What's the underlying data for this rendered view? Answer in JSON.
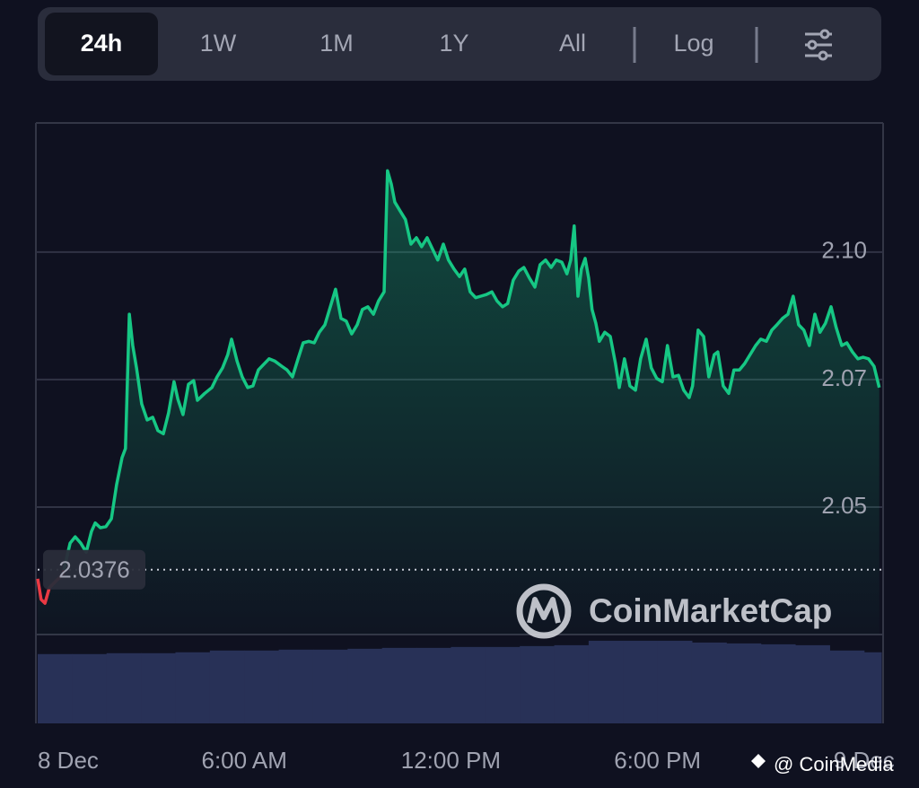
{
  "toolbar": {
    "buttons": [
      "24h",
      "1W",
      "1M",
      "1Y",
      "All"
    ],
    "log": "Log"
  },
  "chart_data": {
    "type": "line",
    "x": [
      0,
      0.1,
      0.21,
      0.34,
      0.52,
      0.73,
      0.94,
      1.09,
      1.25,
      1.41,
      1.56,
      1.67,
      1.82,
      1.98,
      2.14,
      2.29,
      2.45,
      2.55,
      2.66,
      2.76,
      2.87,
      3.02,
      3.18,
      3.34,
      3.49,
      3.65,
      3.8,
      3.96,
      4.07,
      4.22,
      4.38,
      4.53,
      4.64,
      4.85,
      5.06,
      5.21,
      5.37,
      5.52,
      5.63,
      5.79,
      5.94,
      6.1,
      6.25,
      6.41,
      6.57,
      6.72,
      6.88,
      7.09,
      7.24,
      7.4,
      7.56,
      7.71,
      7.87,
      8.03,
      8.18,
      8.34,
      8.5,
      8.65,
      8.81,
      8.96,
      9.12,
      9.28,
      9.43,
      9.59,
      9.75,
      9.9,
      10.06,
      10.16,
      10.27,
      10.37,
      10.53,
      10.68,
      10.84,
      11.0,
      11.15,
      11.31,
      11.47,
      11.62,
      11.78,
      11.93,
      12.09,
      12.25,
      12.4,
      12.56,
      12.72,
      12.87,
      13.03,
      13.19,
      13.34,
      13.5,
      13.65,
      13.81,
      13.97,
      14.12,
      14.28,
      14.44,
      14.59,
      14.75,
      14.91,
      15.06,
      15.22,
      15.37,
      15.48,
      15.58,
      15.69,
      15.79,
      15.9,
      16.0,
      16.1,
      16.21,
      16.31,
      16.47,
      16.63,
      16.78,
      16.89,
      17.04,
      17.2,
      17.36,
      17.51,
      17.67,
      17.82,
      17.98,
      18.14,
      18.29,
      18.45,
      18.61,
      18.76,
      18.92,
      19.02,
      19.18,
      19.34,
      19.49,
      19.65,
      19.75,
      19.91,
      20.07,
      20.22,
      20.38,
      20.53,
      20.69,
      20.85,
      21.0,
      21.16,
      21.32,
      21.47,
      21.63,
      21.79,
      21.94,
      22.1,
      22.25,
      22.41,
      22.57,
      22.72,
      22.88,
      23.04,
      23.19,
      23.35,
      23.5,
      23.66,
      23.82,
      23.97,
      24.13,
      24.29,
      24.44
    ],
    "values": [
      2.0359,
      2.032,
      2.0313,
      2.0342,
      2.0354,
      2.0367,
      2.0426,
      2.0438,
      2.0426,
      2.0409,
      2.0448,
      2.0464,
      2.0455,
      2.0457,
      2.0472,
      2.0536,
      2.0587,
      2.0604,
      2.0857,
      2.0798,
      2.0756,
      2.0688,
      2.0658,
      2.0663,
      2.0638,
      2.0632,
      2.0671,
      2.073,
      2.0697,
      2.0668,
      2.0725,
      2.0732,
      2.0695,
      2.0708,
      2.0719,
      2.0739,
      2.0756,
      2.0781,
      2.081,
      2.0769,
      2.0739,
      2.0719,
      2.0722,
      2.0752,
      2.0763,
      2.0773,
      2.0769,
      2.0759,
      2.0752,
      2.0739,
      2.0773,
      2.0803,
      2.0806,
      2.0803,
      2.0823,
      2.0837,
      2.0871,
      2.0904,
      2.0849,
      2.0844,
      2.082,
      2.0837,
      2.0866,
      2.0871,
      2.0857,
      2.0882,
      2.0899,
      2.1127,
      2.1102,
      2.1068,
      2.1051,
      2.1035,
      2.0989,
      2.1001,
      2.0984,
      2.1001,
      2.0979,
      2.0959,
      2.0989,
      2.0959,
      2.0942,
      2.0928,
      2.0942,
      2.0899,
      2.0888,
      2.0891,
      2.0894,
      2.0899,
      2.0882,
      2.0871,
      2.0877,
      2.0921,
      2.0938,
      2.0945,
      2.0925,
      2.0908,
      2.095,
      2.0959,
      2.0945,
      2.0959,
      2.0955,
      2.0933,
      2.0959,
      2.1023,
      2.0891,
      2.0942,
      2.0962,
      2.0925,
      2.0866,
      2.084,
      2.0806,
      2.0823,
      2.0815,
      2.0764,
      2.0719,
      2.0773,
      2.0722,
      2.0714,
      2.0773,
      2.081,
      2.0756,
      2.0736,
      2.073,
      2.0798,
      2.0739,
      2.0742,
      2.0714,
      2.07,
      2.0722,
      2.0827,
      2.0815,
      2.0739,
      2.0781,
      2.0786,
      2.0722,
      2.0708,
      2.0752,
      2.0752,
      2.0764,
      2.0781,
      2.0798,
      2.081,
      2.0806,
      2.0827,
      2.0837,
      2.0849,
      2.0857,
      2.0891,
      2.0837,
      2.0827,
      2.0798,
      2.0857,
      2.0823,
      2.084,
      2.0871,
      2.0832,
      2.0798,
      2.0803,
      2.0786,
      2.0773,
      2.0776,
      2.0773,
      2.0759,
      2.0719
    ],
    "color": "#16c784",
    "down_color": "#ea3943",
    "baseline": 2.0376,
    "xlim": [
      0,
      24.5
    ],
    "xticks": [
      {
        "value": 0,
        "label": "8 Dec"
      },
      {
        "value": 6,
        "label": "6:00 AM"
      },
      {
        "value": 12,
        "label": "12:00 PM"
      },
      {
        "value": 18,
        "label": "6:00 PM"
      },
      {
        "value": 24,
        "label": "9 Dec"
      }
    ],
    "ylim": [
      2.0254,
      2.1217
    ],
    "yticks": [
      {
        "value": 2.0494,
        "label": "2.05"
      },
      {
        "value": 2.0734,
        "label": "2.07"
      },
      {
        "value": 2.0974,
        "label": "2.10"
      }
    ],
    "grid": true,
    "volume": {
      "values": [
        78,
        78,
        79,
        79,
        80,
        82,
        82,
        83,
        83,
        84,
        85,
        85,
        86,
        86,
        87,
        88,
        93,
        93,
        93,
        91,
        90,
        89,
        88,
        82,
        80
      ],
      "ylim": [
        0,
        100
      ],
      "color": "#283157"
    },
    "brand": "CoinMarketCap"
  },
  "watermark": "@ CoinMedia"
}
